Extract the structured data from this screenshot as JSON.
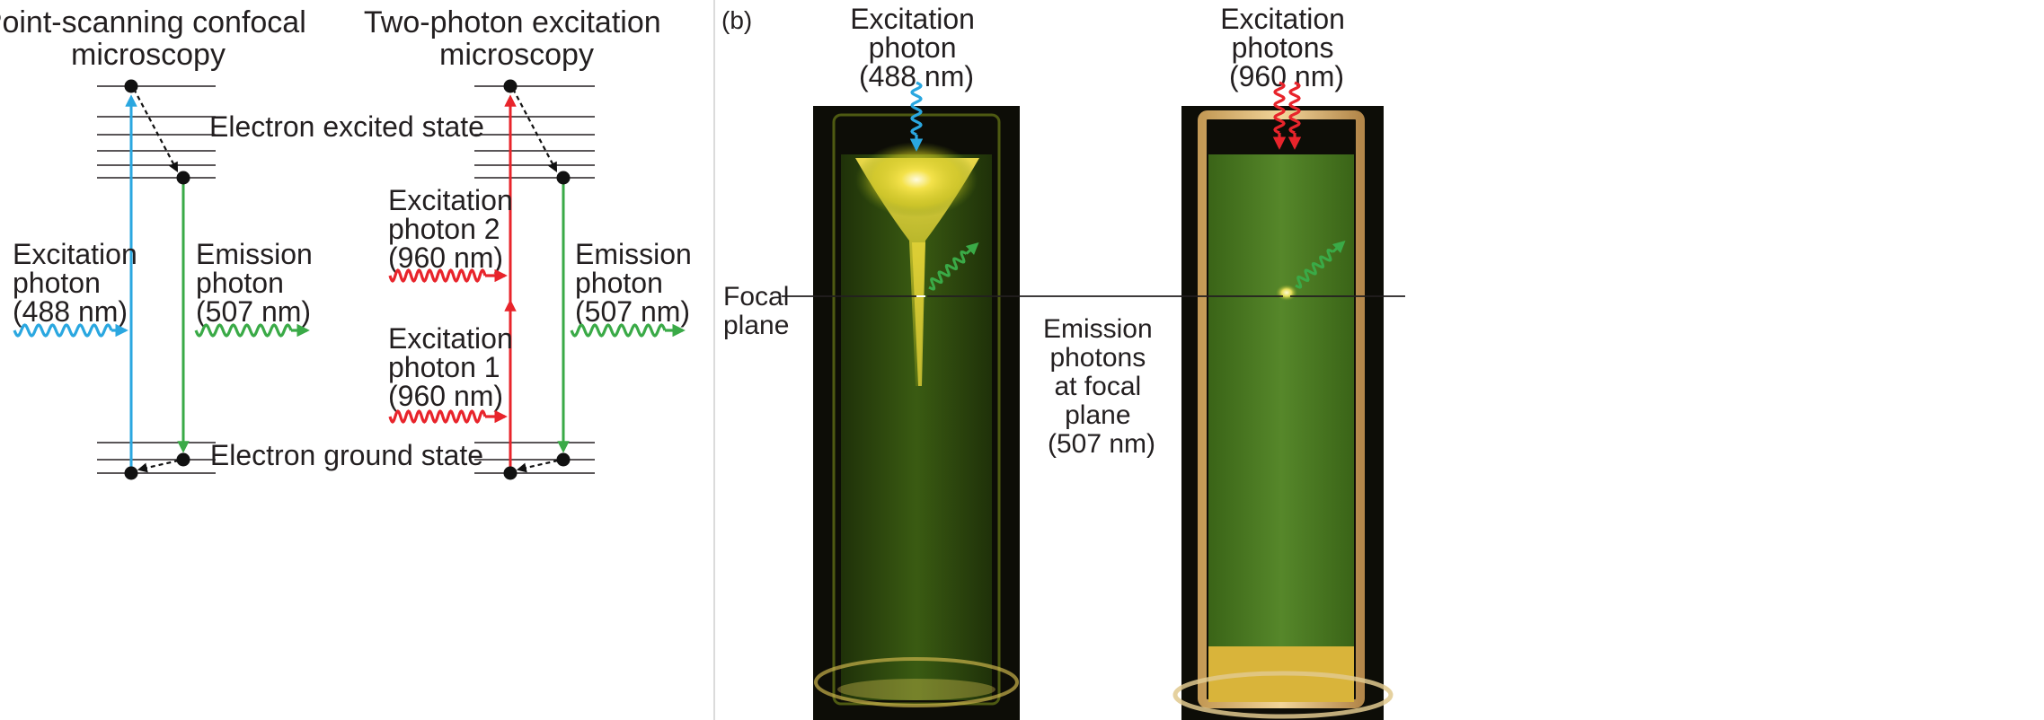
{
  "panel_a": {
    "left_title": [
      "Point-scanning confocal",
      "microscopy"
    ],
    "right_title": [
      "Two-photon excitation",
      "microscopy"
    ],
    "excited_state_label": "Electron excited state",
    "ground_state_label": "Electron ground state",
    "left_excitation": [
      "Excitation",
      "photon",
      "(488 nm)"
    ],
    "left_emission": [
      "Emission",
      "photon",
      "(507 nm)"
    ],
    "right_excitation_2": [
      "Excitation",
      "photon 2",
      "(960 nm)"
    ],
    "right_excitation_1": [
      "Excitation",
      "photon 1",
      "(960 nm)"
    ],
    "right_emission": [
      "Emission",
      "photon",
      "(507 nm)"
    ]
  },
  "panel_b": {
    "tag": "(b)",
    "left_photo_label": [
      "Excitation",
      "photon",
      "(488 nm)"
    ],
    "right_photo_label": [
      "Excitation",
      "photons",
      "(960 nm)"
    ],
    "focal_plane_label": [
      "Focal",
      "plane"
    ],
    "emission_label": [
      "Emission",
      "photons",
      "at focal",
      "plane",
      "(507 nm)"
    ]
  },
  "colors": {
    "blue": "#2aa7e0",
    "red": "#e8242b",
    "green": "#3aaa47",
    "text": "#231f20",
    "dark_background": "#0d0d07",
    "panel_divider": "#cfcfcf"
  }
}
